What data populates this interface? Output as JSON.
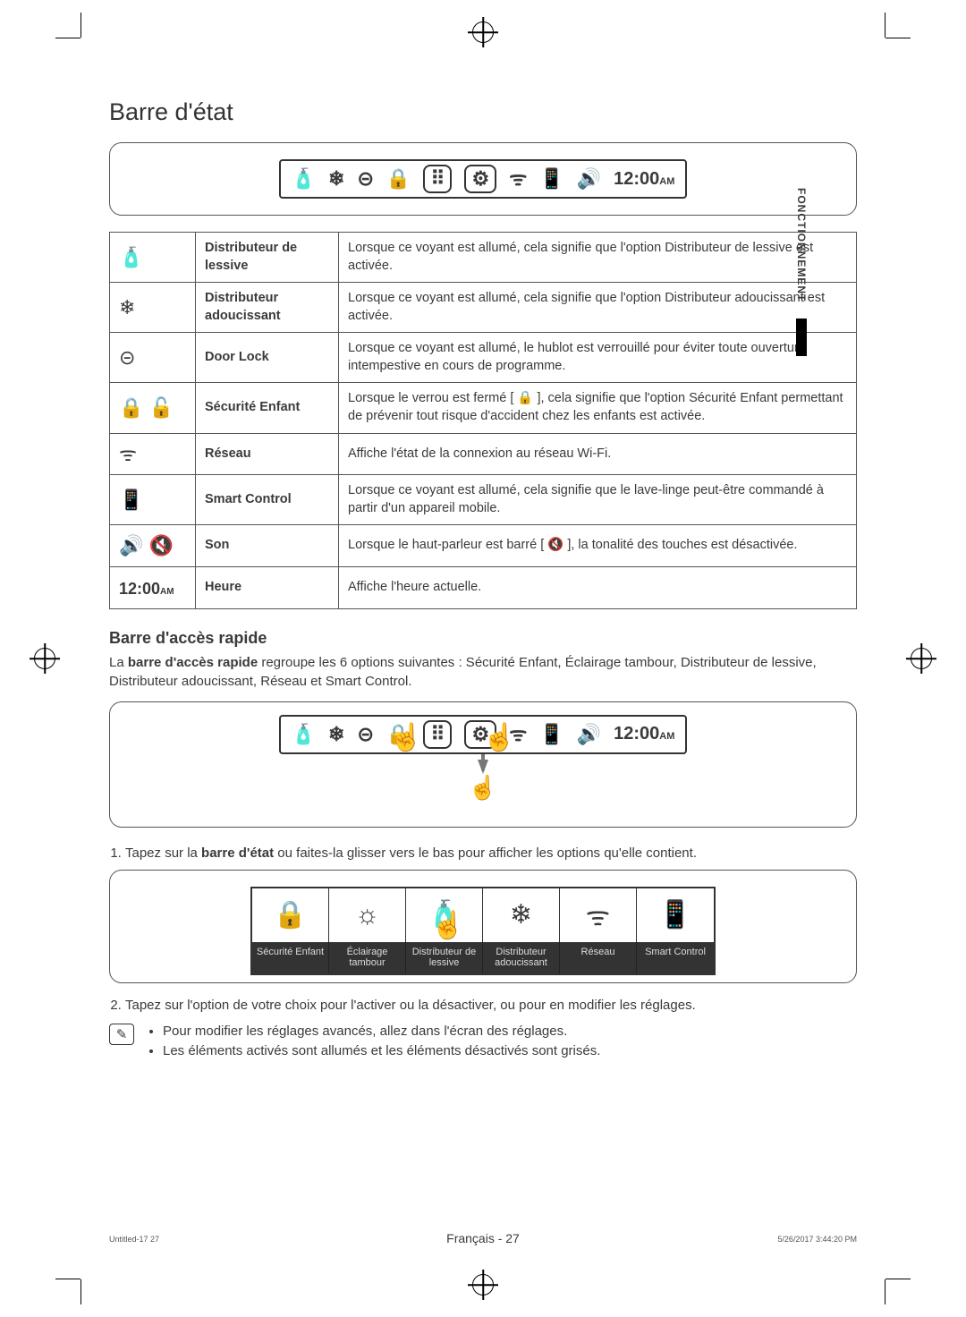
{
  "side_tab": "FONCTIONNEMENT",
  "section_title": "Barre d'état",
  "status_bar": {
    "time": "12:00",
    "ampm": "AM"
  },
  "icons": {
    "detergent": "🧴",
    "softener": "❄",
    "lock": "⊝",
    "child": "🔒",
    "wifi": "ᯤ",
    "smart": "📱",
    "sound_on": "🔊",
    "sound_off": "🔇",
    "grid": "⠿",
    "gear": "⚙"
  },
  "table_rows": [
    {
      "icon": "🧴",
      "name": "Distributeur de lessive",
      "desc": "Lorsque ce voyant est allumé, cela signifie que l'option Distributeur de lessive est activée."
    },
    {
      "icon": "❄",
      "name": "Distributeur adoucissant",
      "desc": "Lorsque ce voyant est allumé, cela signifie que l'option Distributeur adoucissant est activée."
    },
    {
      "icon": "⊝",
      "name": "Door Lock",
      "desc": "Lorsque ce voyant est allumé, le hublot est verrouillé pour éviter toute ouverture intempestive en cours de programme."
    },
    {
      "icon": "🔒 🔓",
      "name": "Sécurité Enfant",
      "desc": "Lorsque le verrou est fermé [ 🔒 ], cela signifie que l'option Sécurité Enfant permettant de prévenir tout risque d'accident chez les enfants est activée."
    },
    {
      "icon": "ᯤ",
      "name": "Réseau",
      "desc": "Affiche l'état de la connexion au réseau Wi-Fi."
    },
    {
      "icon": "📱",
      "name": "Smart Control",
      "desc": "Lorsque ce voyant est allumé, cela signifie que le lave-linge peut-être commandé à partir d'un appareil mobile."
    },
    {
      "icon": "🔊 🔇",
      "name": "Son",
      "desc": "Lorsque le haut-parleur est barré [ 🔇 ], la tonalité des touches est désactivée."
    },
    {
      "icon": "12:00ᴀᴍ",
      "name": "Heure",
      "desc": "Affiche l'heure actuelle."
    }
  ],
  "quick_access": {
    "title": "Barre d'accès rapide",
    "intro_prefix": "La ",
    "intro_bold": "barre d'accès rapide",
    "intro_rest": " regroupe les 6 options suivantes : Sécurité Enfant, Éclairage tambour, Distributeur de lessive, Distributeur adoucissant, Réseau et Smart Control.",
    "step1_prefix": "Tapez sur la ",
    "step1_bold": "barre d'état",
    "step1_rest": " ou faites-la glisser vers le bas pour afficher les options qu'elle contient.",
    "step2": "Tapez sur l'option de votre choix pour l'activer ou la désactiver, ou pour en modifier les réglages.",
    "notes": [
      "Pour modifier les réglages avancés, allez dans l'écran des réglages.",
      "Les éléments activés sont allumés et les éléments désactivés sont grisés."
    ],
    "panel": [
      {
        "icon": "🔒",
        "label": "Sécurité Enfant"
      },
      {
        "icon": "☼",
        "label": "Éclairage tambour"
      },
      {
        "icon": "🧴",
        "label": "Distributeur de lessive"
      },
      {
        "icon": "❄",
        "label": "Distributeur adoucissant"
      },
      {
        "icon": "ᯤ",
        "label": "Réseau"
      },
      {
        "icon": "📱",
        "label": "Smart Control"
      }
    ]
  },
  "footer": {
    "center": "Français - 27",
    "left": "Untitled-17   27",
    "right": "5/26/2017   3:44:20 PM"
  }
}
